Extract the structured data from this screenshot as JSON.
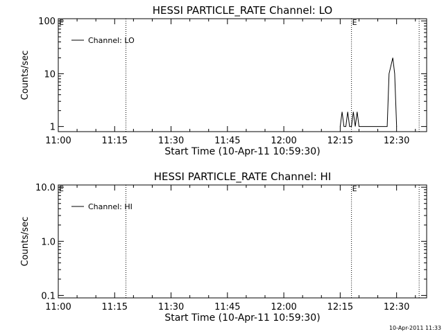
{
  "timestamp": "10-Apr-2011 11:33",
  "chart_data": [
    {
      "type": "line",
      "title": "HESSI PARTICLE_RATE Channel: LO",
      "xlabel": "Start Time (10-Apr-11 10:59:30)",
      "ylabel": "Counts/sec",
      "yscale": "log",
      "xlim": [
        "11:00",
        "12:38"
      ],
      "ylim": [
        0.8,
        110
      ],
      "x_ticks": [
        "11:00",
        "11:15",
        "11:30",
        "11:45",
        "12:00",
        "12:15",
        "12:30"
      ],
      "y_ticks": [
        "1",
        "10",
        "100"
      ],
      "legend": {
        "label": "Channel: LO",
        "location": "top-left"
      },
      "markers": [
        {
          "time": "10:59:30",
          "label": "E"
        },
        {
          "time": "11:18:00",
          "label": ""
        },
        {
          "time": "12:18:00",
          "label": "E"
        },
        {
          "time": "12:36:00",
          "label": ""
        }
      ],
      "series": [
        {
          "name": "Channel: LO",
          "x": [
            "12:15:00",
            "12:15:30",
            "12:16:00",
            "12:16:30",
            "12:17:00",
            "12:17:30",
            "12:18:00",
            "12:18:30",
            "12:19:00",
            "12:19:30",
            "12:20:00",
            "12:20:30",
            "12:21:00",
            "12:27:30",
            "12:28:00",
            "12:29:00",
            "12:29:30",
            "12:30:00"
          ],
          "y": [
            1,
            1.9,
            1,
            1,
            1.9,
            1,
            1,
            1.9,
            1,
            1.9,
            1,
            1,
            1,
            1,
            10,
            20,
            10,
            1
          ]
        }
      ]
    },
    {
      "type": "line",
      "title": "HESSI PARTICLE_RATE Channel: HI",
      "xlabel": "Start Time (10-Apr-11 10:59:30)",
      "ylabel": "Counts/sec",
      "yscale": "log",
      "xlim": [
        "11:00",
        "12:38"
      ],
      "ylim": [
        0.09,
        11
      ],
      "x_ticks": [
        "11:00",
        "11:15",
        "11:30",
        "11:45",
        "12:00",
        "12:15",
        "12:30"
      ],
      "y_ticks": [
        "0.1",
        "1.0",
        "10.0"
      ],
      "legend": {
        "label": "Channel: HI",
        "location": "top-left"
      },
      "markers": [
        {
          "time": "10:59:30",
          "label": "E"
        },
        {
          "time": "11:18:00",
          "label": ""
        },
        {
          "time": "12:18:00",
          "label": "E"
        },
        {
          "time": "12:36:00",
          "label": ""
        }
      ],
      "series": [
        {
          "name": "Channel: HI",
          "x": [],
          "y": []
        }
      ]
    }
  ]
}
